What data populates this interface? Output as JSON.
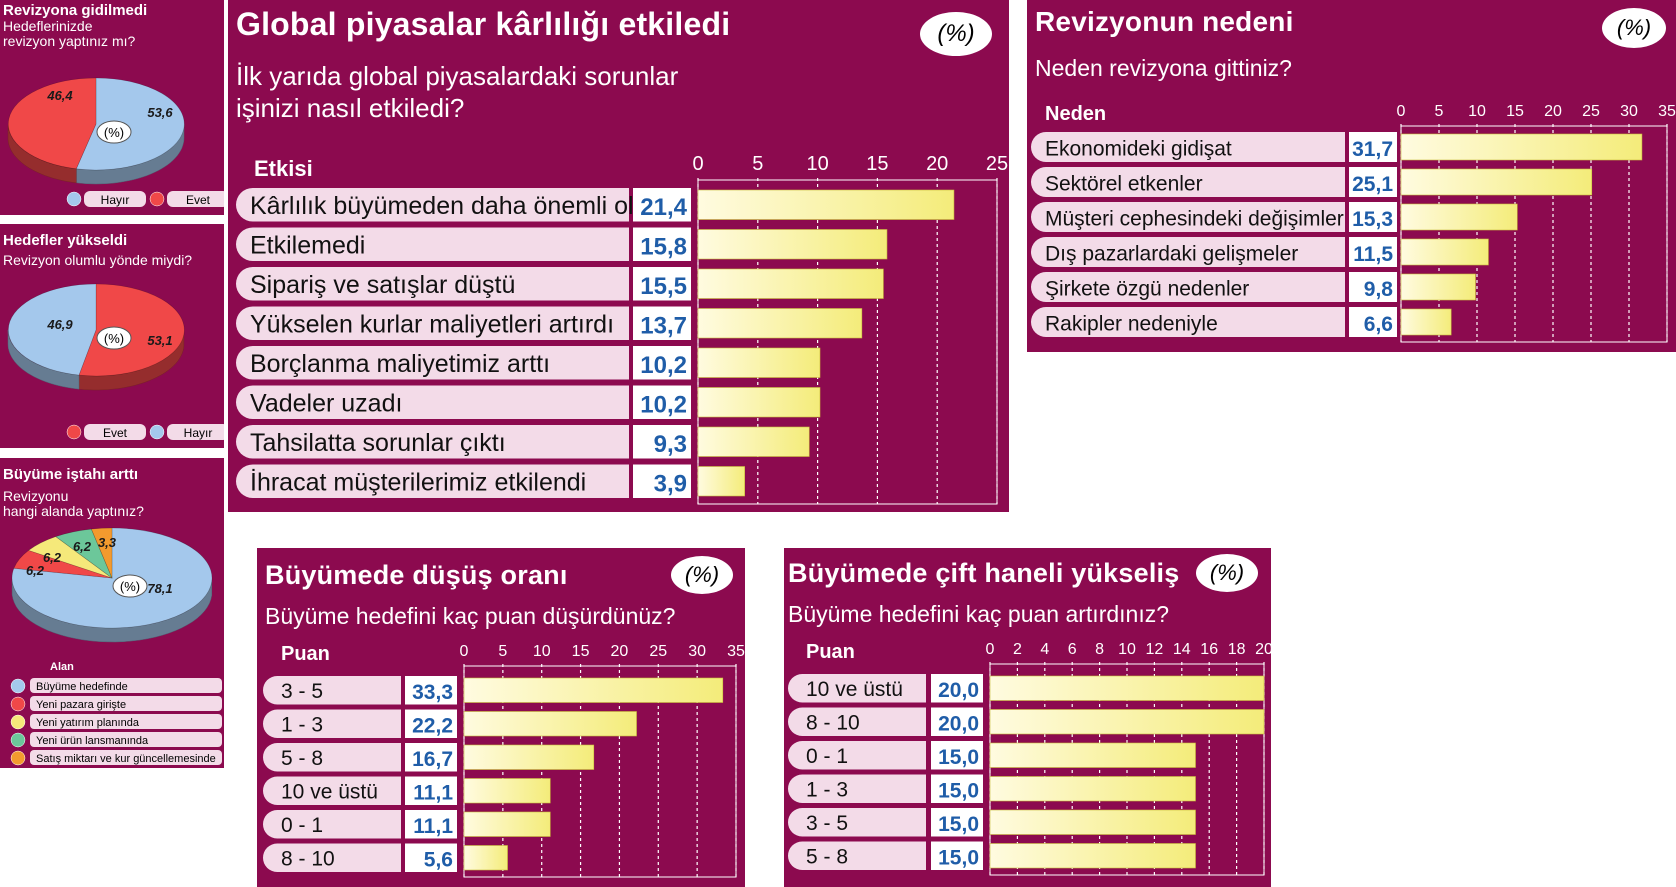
{
  "chart_data": [
    {
      "type": "pie",
      "title": "Revizyona gidilmedi",
      "question": "Hedeflerinizde\nrevizyon yaptınız mı?",
      "unit_label": "(%)",
      "slices": [
        {
          "name": "Hayır",
          "value": 53.6,
          "label": "53,6",
          "color": "#a4c8ec"
        },
        {
          "name": "Evet",
          "value": 46.4,
          "label": "46,4",
          "color": "#f04848"
        }
      ],
      "legend": [
        "Hayır",
        "Evet"
      ]
    },
    {
      "type": "pie",
      "title": "Hedefler yükseldi",
      "question": "Revizyon olumlu yönde miydi?",
      "unit_label": "(%)",
      "slices": [
        {
          "name": "Evet",
          "value": 53.1,
          "label": "53,1",
          "color": "#f04848"
        },
        {
          "name": "Hayır",
          "value": 46.9,
          "label": "46,9",
          "color": "#a4c8ec"
        }
      ],
      "legend": [
        "Evet",
        "Hayır"
      ]
    },
    {
      "type": "pie",
      "title": "Büyüme iştahı arttı",
      "question": "Revizyonu\nhangi alanda yaptınız?",
      "unit_label": "(%)",
      "legend_title": "Alan",
      "slices": [
        {
          "name": "Büyüme hedefinde",
          "value": 78.1,
          "label": "78,1",
          "color": "#a4c8ec"
        },
        {
          "name": "Yeni pazara girişte",
          "value": 6.2,
          "label": "6,2",
          "color": "#f04848"
        },
        {
          "name": "Yeni yatırım planında",
          "value": 6.2,
          "label": "6,2",
          "color": "#f5e97a"
        },
        {
          "name": "Yeni ürün lansmanında",
          "value": 6.2,
          "label": "6,2",
          "color": "#6cc79a"
        },
        {
          "name": "Satış miktarı ve kur güncellemesinde",
          "value": 3.3,
          "label": "3,3",
          "color": "#f39a2e"
        }
      ]
    },
    {
      "type": "bar",
      "title": "Global piyasalar kârlılığı etkiledi",
      "question": "İlk yarıda global piyasalardaki sorunlar\nişinizi nasıl etkiledi?",
      "unit_label": "(%)",
      "header": "Etkisi",
      "ticks": [
        "0",
        "5",
        "10",
        "15",
        "20",
        "25"
      ],
      "xlim": [
        0,
        25
      ],
      "categories": [
        "Kârlılık büyümeden daha önemli oldu",
        "Etkilemedi",
        "Sipariş ve satışlar düştü",
        "Yükselen kurlar maliyetleri artırdı",
        "Borçlanma maliyetimiz arttı",
        "Vadeler uzadı",
        "Tahsilatta sorunlar çıktı",
        "İhracat müşterilerimiz etkilendi"
      ],
      "values": [
        21.4,
        15.8,
        15.5,
        13.7,
        10.2,
        10.2,
        9.3,
        3.9
      ],
      "labels": [
        "21,4",
        "15,8",
        "15,5",
        "13,7",
        "10,2",
        "10,2",
        "9,3",
        "3,9"
      ]
    },
    {
      "type": "bar",
      "title": "Revizyonun nedeni",
      "question": "Neden revizyona gittiniz?",
      "unit_label": "(%)",
      "header": "Neden",
      "ticks": [
        "0",
        "5",
        "10",
        "15",
        "20",
        "25",
        "30",
        "35"
      ],
      "xlim": [
        0,
        35
      ],
      "categories": [
        "Ekonomideki gidişat",
        "Sektörel etkenler",
        "Müşteri cephesindeki değişimler",
        "Dış pazarlardaki gelişmeler",
        "Şirkete özgü nedenler",
        "Rakipler nedeniyle"
      ],
      "values": [
        31.7,
        25.1,
        15.3,
        11.5,
        9.8,
        6.6
      ],
      "labels": [
        "31,7",
        "25,1",
        "15,3",
        "11,5",
        "9,8",
        "6,6"
      ]
    },
    {
      "type": "bar",
      "title": "Büyümede düşüş oranı",
      "question": "Büyüme hedefini kaç puan düşürdünüz?",
      "unit_label": "(%)",
      "header": "Puan",
      "ticks": [
        "0",
        "5",
        "10",
        "15",
        "20",
        "25",
        "30",
        "35"
      ],
      "xlim": [
        0,
        35
      ],
      "categories": [
        "3 - 5",
        "1 - 3",
        "5 - 8",
        "10 ve üstü",
        "0 - 1",
        "8 - 10"
      ],
      "values": [
        33.3,
        22.2,
        16.7,
        11.1,
        11.1,
        5.6
      ],
      "labels": [
        "33,3",
        "22,2",
        "16,7",
        "11,1",
        "11,1",
        "5,6"
      ]
    },
    {
      "type": "bar",
      "title": "Büyümede çift haneli yükseliş",
      "question": "Büyüme hedefini kaç puan artırdınız?",
      "unit_label": "(%)",
      "header": "Puan",
      "ticks": [
        "0",
        "2",
        "4",
        "6",
        "8",
        "10",
        "12",
        "14",
        "16",
        "18",
        "20"
      ],
      "xlim": [
        0,
        20
      ],
      "categories": [
        "10 ve üstü",
        "8 - 10",
        "0 - 1",
        "1 - 3",
        "3 - 5",
        "5 - 8"
      ],
      "values": [
        20.0,
        20.0,
        15.0,
        15.0,
        15.0,
        15.0
      ],
      "labels": [
        "20,0",
        "20,0",
        "15,0",
        "15,0",
        "15,0",
        "15,0"
      ]
    }
  ]
}
